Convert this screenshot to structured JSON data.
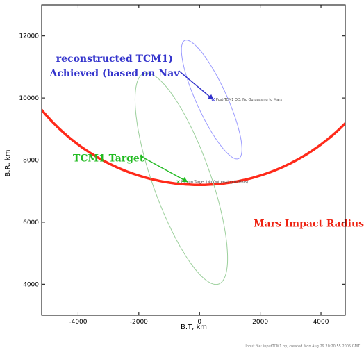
{
  "chart_data": {
    "type": "line",
    "title": "",
    "xlabel": "B.T, km",
    "ylabel": "B.R, km",
    "xlim": [
      -5200,
      4800
    ],
    "ylim": [
      13000,
      3000
    ],
    "y_inverted": true,
    "xticks": [
      -4000,
      -2000,
      0,
      2000,
      4000
    ],
    "yticks": [
      4000,
      6000,
      8000,
      10000,
      12000
    ],
    "xtick_labels": [
      "-4000",
      "-2000",
      "0",
      "2000",
      "4000"
    ],
    "ytick_labels": [
      "4000",
      "6000",
      "8000",
      "10000",
      "12000"
    ],
    "grid": false,
    "series": [
      {
        "name": "Mars Impact Radius",
        "color": "#ff2a1a",
        "kind": "circle-arc",
        "center": [
          0,
          14000
        ],
        "radius": 6800
      },
      {
        "name": "Design Target (No Outgassing to Mars)",
        "color": "#9bcf9b",
        "kind": "ellipse",
        "center": [
          -600,
          7400
        ],
        "rx": 3610,
        "ry": 950,
        "rotation_deg": 70
      },
      {
        "name": "Post-TCM1 OD: No Outgassing to Mars",
        "color": "#9a9aff",
        "kind": "ellipse",
        "center": [
          400,
          9950
        ],
        "rx": 2100,
        "ry": 500,
        "rotation_deg": 65
      }
    ],
    "points": [
      {
        "label": "Design Target (No Outgassing to Mars)",
        "x": -700,
        "y": 7300,
        "color": "#33aa33"
      },
      {
        "label": "Post-TCM1 OD: No Outgassing to Mars",
        "x": 450,
        "y": 9950,
        "color": "#4444dd"
      }
    ],
    "annotations": [
      {
        "text": "Mars Impact Radius",
        "color": "#ee2211",
        "x": 3600,
        "y": 5850
      },
      {
        "text": "TCM1 Target",
        "color": "#22bb22",
        "x": -3000,
        "y": 7950,
        "arrow_to": [
          -400,
          7300
        ]
      },
      {
        "text": "Achieved (based on Nav",
        "color": "#3333cc",
        "x": -2800,
        "y": 10700,
        "arrow_to": [
          450,
          9950
        ]
      },
      {
        "text": "reconstructed TCM1)",
        "color": "#3333cc",
        "x": -2800,
        "y": 11170
      }
    ]
  },
  "footer": "Input file: inputTCM1.py, created Mon Aug 29 20:20:55 2005 GMT"
}
